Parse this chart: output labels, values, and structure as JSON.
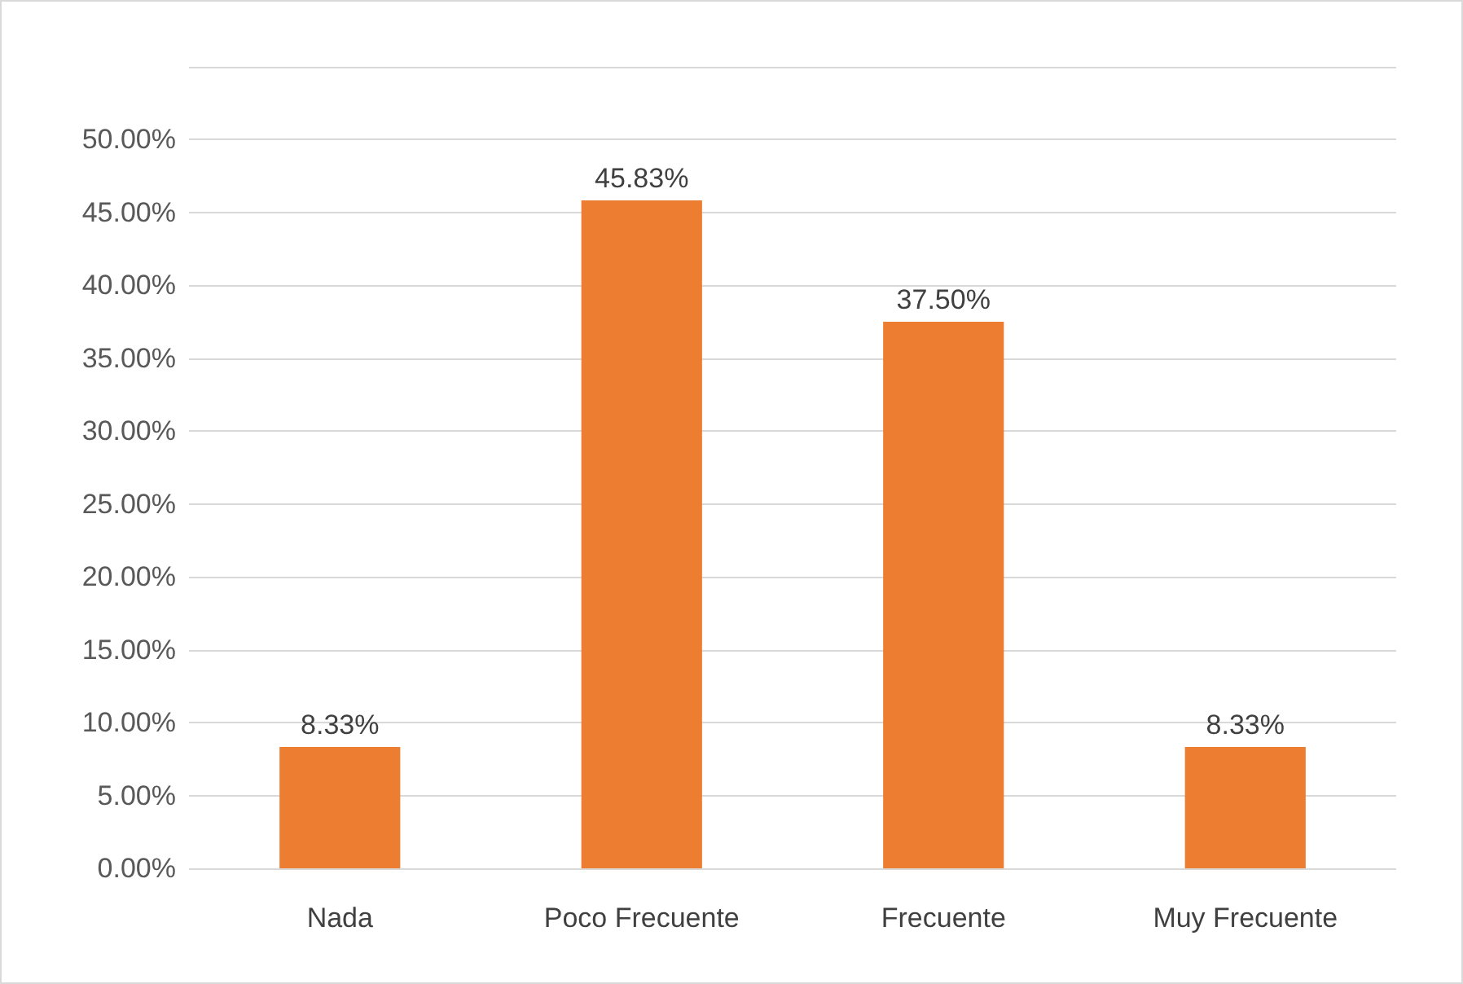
{
  "chart_data": {
    "type": "bar",
    "categories": [
      "Nada",
      "Poco Frecuente",
      "Frecuente",
      "Muy Frecuente"
    ],
    "values": [
      8.33,
      45.83,
      37.5,
      8.33
    ],
    "color": "#ed7d31",
    "value_labels": [
      "8.33%",
      "45.83%",
      "37.50%",
      "8.33%"
    ],
    "ylim": [
      0,
      55
    ],
    "yticks": [
      {
        "value": 0,
        "label": "0.00%"
      },
      {
        "value": 5,
        "label": "5.00%"
      },
      {
        "value": 10,
        "label": "10.00%"
      },
      {
        "value": 15,
        "label": "15.00%"
      },
      {
        "value": 20,
        "label": "20.00%"
      },
      {
        "value": 25,
        "label": "25.00%"
      },
      {
        "value": 30,
        "label": "30.00%"
      },
      {
        "value": 35,
        "label": "35.00%"
      },
      {
        "value": 40,
        "label": "40.00%"
      },
      {
        "value": 45,
        "label": "45.00%"
      },
      {
        "value": 50,
        "label": "50.00%"
      },
      {
        "value": 55,
        "label": null
      }
    ],
    "grid": "y"
  }
}
